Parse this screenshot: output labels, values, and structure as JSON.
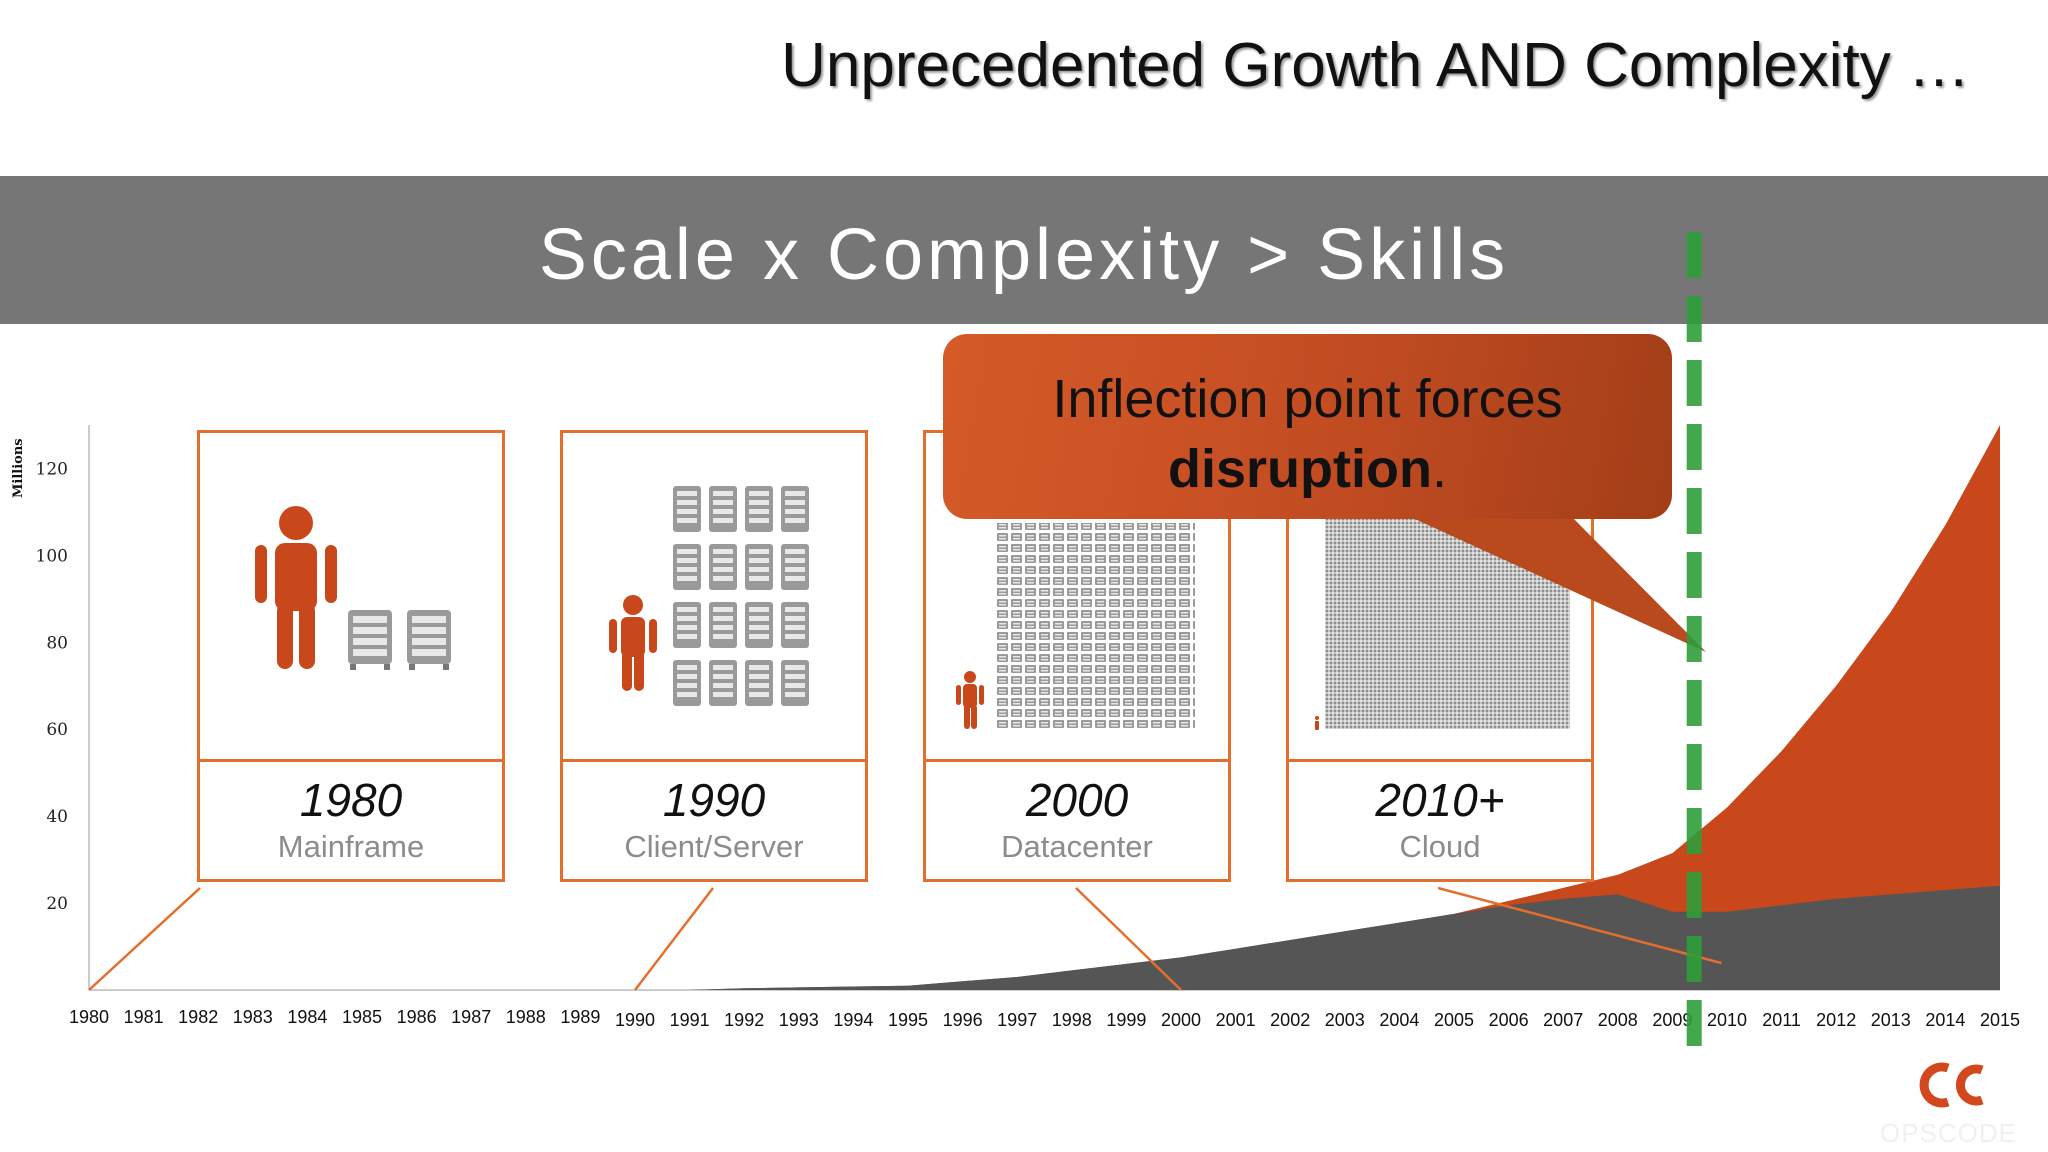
{
  "slide_title": "Unprecedented Growth AND Complexity …",
  "banner": "Scale x Complexity > Skills",
  "callout": {
    "line1": "Inflection point forces",
    "bold": "disruption",
    "tail": "."
  },
  "eras": [
    {
      "year": "1980",
      "label": "Mainframe"
    },
    {
      "year": "1990",
      "label": "Client/Server"
    },
    {
      "year": "2000",
      "label": "Datacenter"
    },
    {
      "year": "2010+",
      "label": "Cloud"
    }
  ],
  "colors": {
    "orange": "#c8481b",
    "gray_area": "#555555",
    "card_border": "#e36f2f",
    "green_dash": "#2e9e3a",
    "banner": "#767676"
  },
  "logo": {
    "icon": "opscode-logo-icon",
    "text": "OPSCODE"
  },
  "chart_data": {
    "type": "area",
    "ylabel": "Millions",
    "ylim": [
      0,
      130
    ],
    "yticks": [
      20,
      40,
      60,
      80,
      100,
      120
    ],
    "x": [
      1980,
      1981,
      1982,
      1983,
      1984,
      1985,
      1986,
      1987,
      1988,
      1989,
      1990,
      1991,
      1992,
      1993,
      1994,
      1995,
      1996,
      1997,
      1998,
      1999,
      2000,
      2001,
      2002,
      2003,
      2004,
      2005,
      2006,
      2007,
      2008,
      2009,
      2010,
      2011,
      2012,
      2013,
      2014,
      2015
    ],
    "xtick_labels": [
      "1980",
      "1981",
      "1982",
      "1983",
      "1984",
      "1985",
      "1986",
      "1987",
      "1988",
      "1989",
      "1990",
      "1991",
      "1992",
      "1993",
      "1994",
      "1995",
      "1996",
      "1997",
      "1998",
      "1999",
      "2000",
      "2001",
      "2002",
      "2003",
      "2004",
      "2005",
      "2006",
      "2007",
      "2008",
      "2009",
      "2010",
      "2011",
      "2012",
      "2013",
      "2014",
      "2015"
    ],
    "series": [
      {
        "values": [
          0,
          0,
          0,
          0,
          0,
          0,
          0,
          0,
          0,
          0,
          0,
          0,
          0.4,
          0.6,
          0.8,
          1.0,
          2.0,
          3.0,
          4.5,
          6.0,
          7.5,
          9.5,
          11.5,
          13.5,
          15.5,
          17.5,
          19.5,
          21.0,
          22.0,
          18.0,
          18.0,
          19.5,
          21.0,
          22.0,
          23.0,
          24.0
        ]
      },
      {
        "values": [
          0,
          0,
          0,
          0,
          0,
          0,
          0,
          0,
          0,
          0,
          0,
          0,
          0.4,
          0.6,
          0.8,
          1.0,
          2.0,
          3.0,
          4.5,
          6.0,
          7.5,
          9.5,
          11.5,
          13.5,
          15.5,
          17.5,
          20.5,
          23.5,
          26.5,
          31.5,
          42.0,
          55.0,
          70.0,
          87.0,
          107.0,
          130.0
        ]
      }
    ],
    "marker_year": 2009.4
  }
}
